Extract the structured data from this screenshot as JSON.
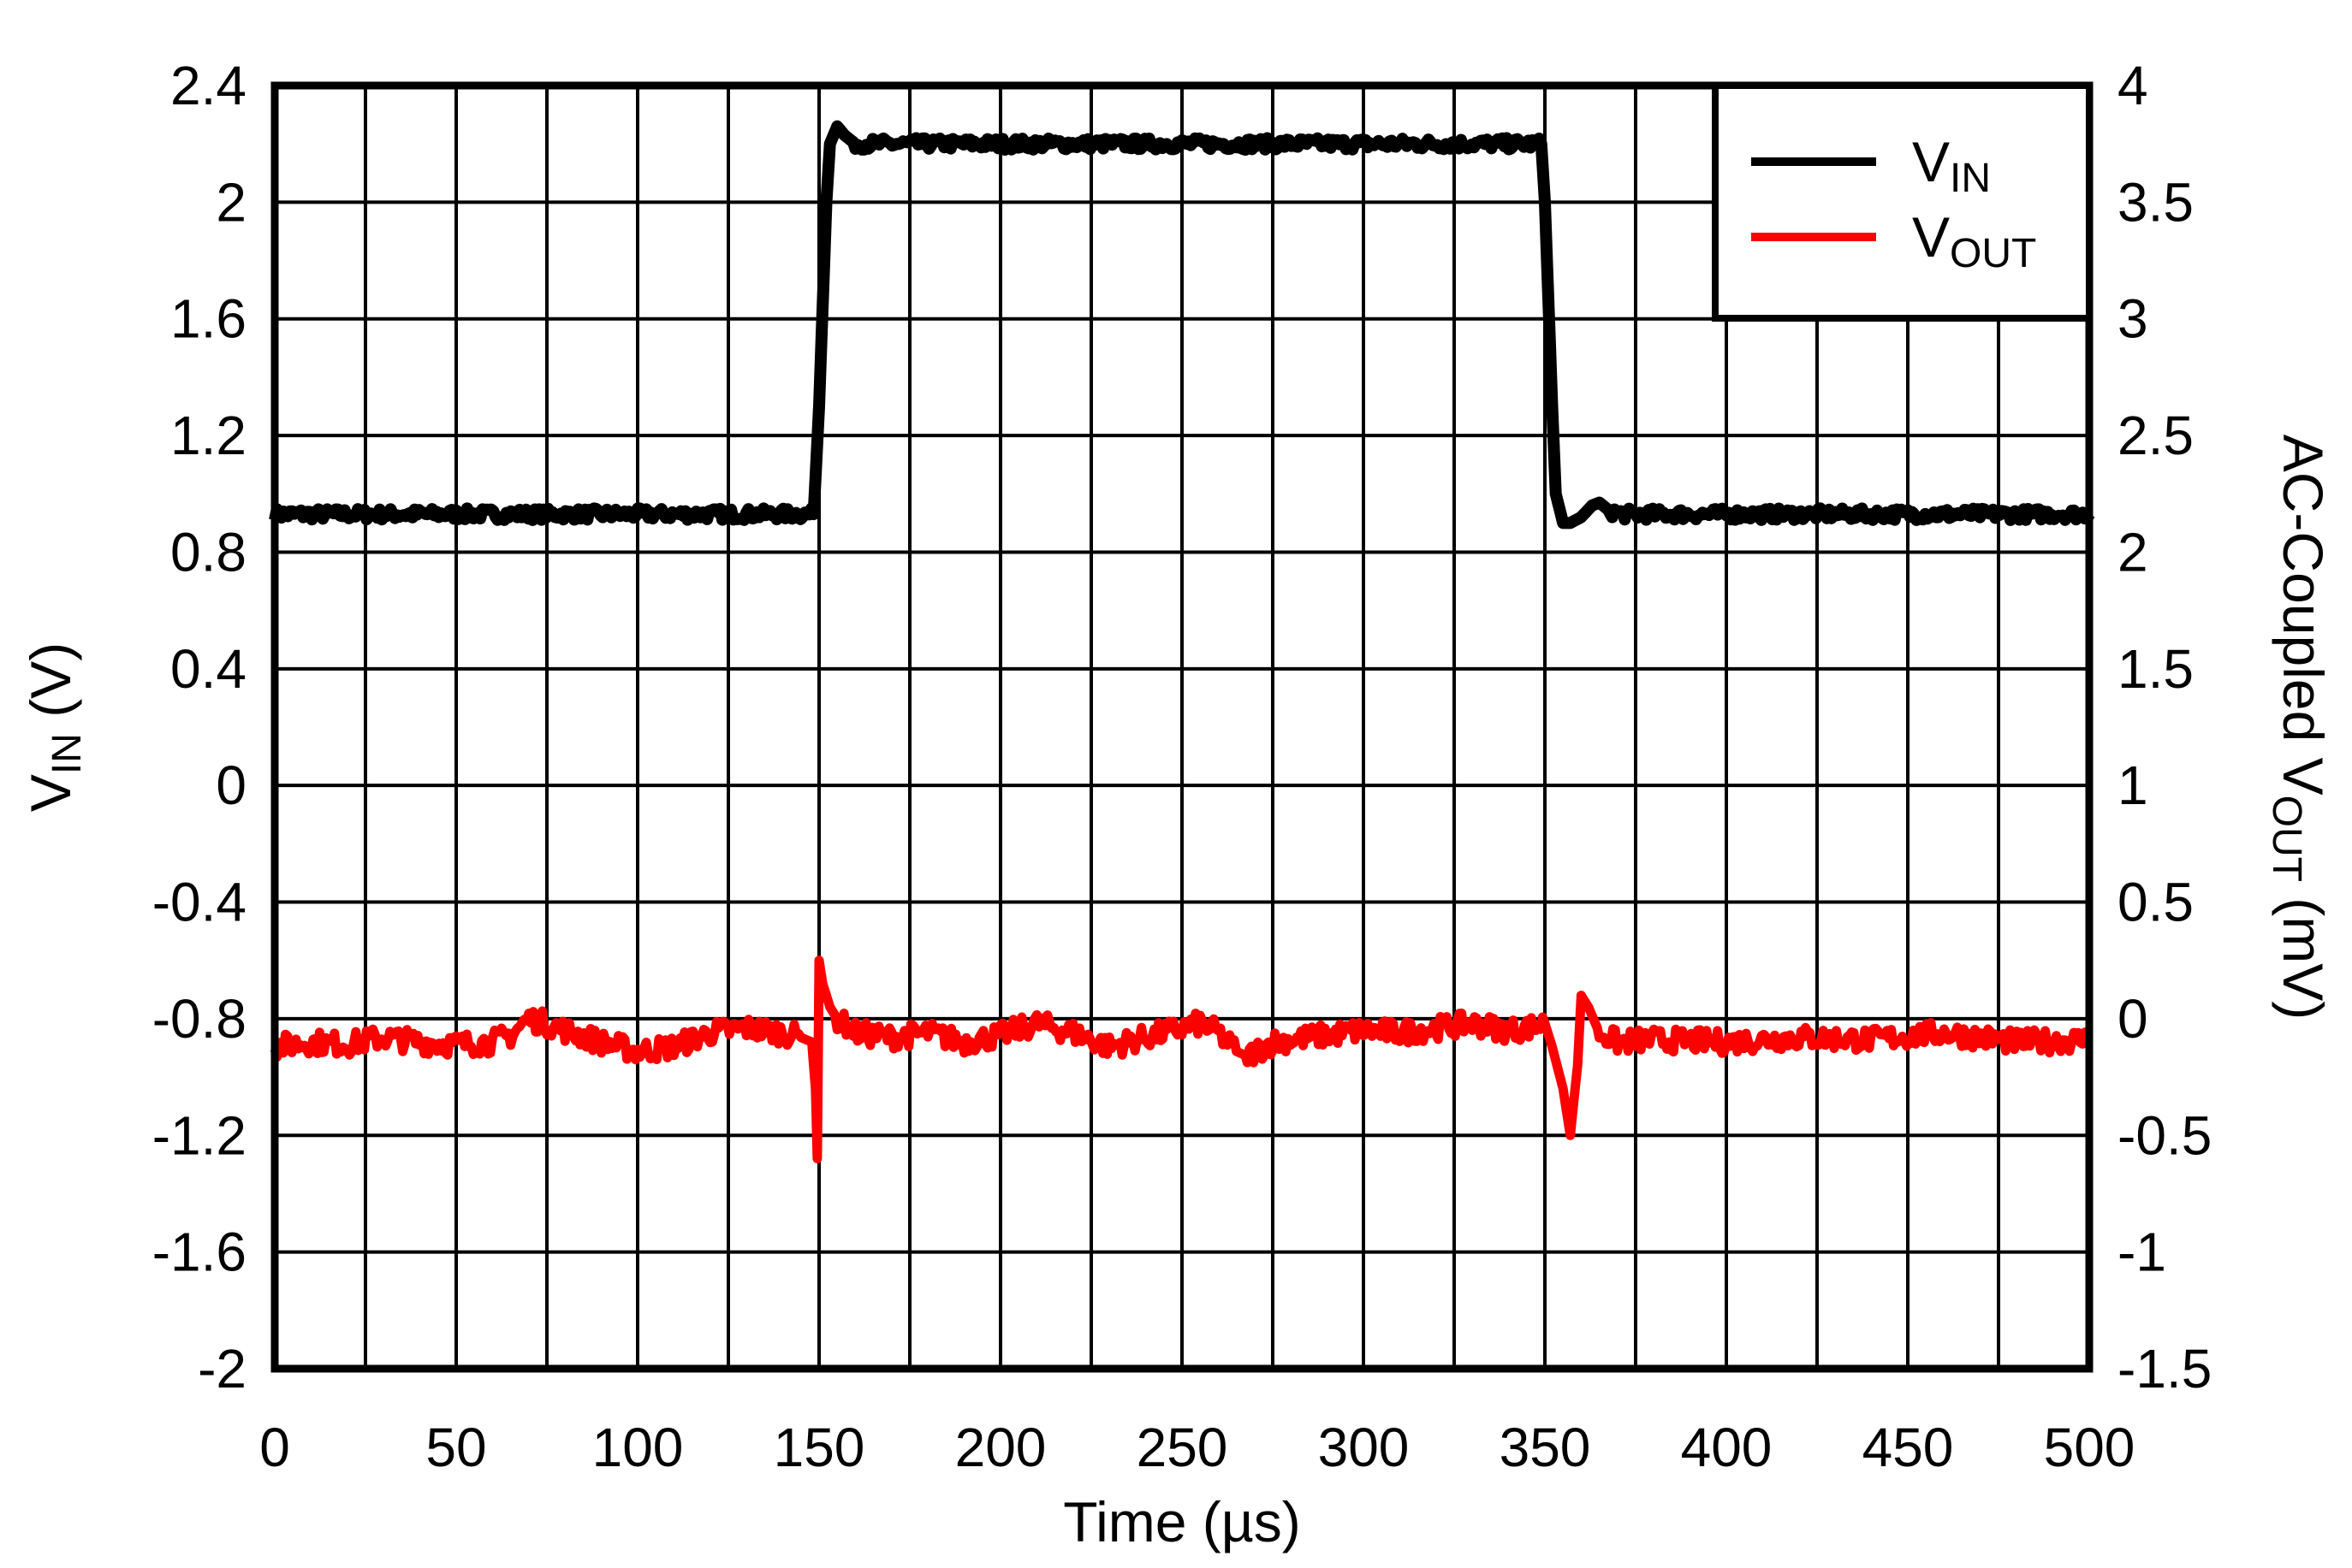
{
  "chart_data": {
    "type": "line",
    "xlabel": "Time (µs)",
    "ylabel_left": {
      "main": "V",
      "sub": "IN",
      "unit": " (V)"
    },
    "ylabel_right": {
      "prefix": "AC-Coupled V",
      "sub": "OUT",
      "unit": " (mV)"
    },
    "xlim": [
      0,
      500
    ],
    "ylim_left": [
      -2,
      2.4
    ],
    "ylim_right": [
      -1.5,
      4
    ],
    "x_ticks": [
      "0",
      "50",
      "100",
      "150",
      "200",
      "250",
      "300",
      "350",
      "400",
      "450",
      "500"
    ],
    "y_ticks_left": [
      "2.4",
      "2",
      "1.6",
      "1.2",
      "0.8",
      "0.4",
      "0",
      "-0.4",
      "-0.8",
      "-1.2",
      "-1.6",
      "-2"
    ],
    "y_ticks_right": [
      "4",
      "3.5",
      "3",
      "2.5",
      "2",
      "1.5",
      "1",
      "0.5",
      "0",
      "-0.5",
      "-1",
      "-1.5"
    ],
    "grid": true,
    "legend_placement": "top-right",
    "series": [
      {
        "name": "VIN",
        "legend_main": "V",
        "legend_sub": "IN",
        "axis": "left",
        "color": "#000000",
        "x": [
          0,
          50,
          100,
          148.5,
          150,
          152,
          153,
          155,
          157,
          160,
          200,
          250,
          300,
          349,
          350,
          352,
          353,
          355,
          357,
          360,
          363,
          365,
          368,
          372,
          400,
          450,
          500
        ],
        "y": [
          0.93,
          0.93,
          0.93,
          0.93,
          1.3,
          2.0,
          2.2,
          2.26,
          2.23,
          2.2,
          2.2,
          2.2,
          2.2,
          2.2,
          2.0,
          1.3,
          1.0,
          0.9,
          0.9,
          0.92,
          0.96,
          0.97,
          0.94,
          0.93,
          0.93,
          0.93,
          0.93
        ]
      },
      {
        "name": "VOUT",
        "legend_main": "V",
        "legend_sub": "OUT",
        "axis": "right",
        "color": "#ff0000",
        "x": [
          0,
          10,
          20,
          30,
          40,
          50,
          60,
          65,
          70,
          75,
          80,
          90,
          100,
          110,
          120,
          130,
          140,
          145,
          148,
          149,
          149.5,
          150,
          151,
          153,
          155,
          160,
          170,
          180,
          190,
          200,
          210,
          220,
          230,
          240,
          250,
          255,
          260,
          265,
          268,
          275,
          290,
          300,
          310,
          320,
          330,
          340,
          345,
          350,
          352,
          355,
          357,
          359,
          360,
          362,
          365,
          370,
          380,
          400,
          420,
          440,
          460,
          480,
          500
        ],
        "y": [
          -0.12,
          -0.1,
          -0.11,
          -0.08,
          -0.1,
          -0.11,
          -0.1,
          -0.07,
          0.0,
          -0.02,
          -0.05,
          -0.1,
          -0.14,
          -0.12,
          -0.06,
          -0.04,
          -0.06,
          -0.08,
          -0.1,
          -0.3,
          -0.6,
          0.25,
          0.15,
          0.05,
          0.0,
          -0.06,
          -0.08,
          -0.06,
          -0.1,
          -0.07,
          -0.02,
          -0.06,
          -0.12,
          -0.08,
          -0.04,
          -0.02,
          -0.06,
          -0.14,
          -0.16,
          -0.1,
          -0.07,
          -0.05,
          -0.06,
          -0.04,
          -0.02,
          -0.05,
          -0.04,
          -0.02,
          -0.12,
          -0.3,
          -0.5,
          -0.2,
          0.1,
          0.05,
          -0.06,
          -0.1,
          -0.09,
          -0.1,
          -0.08,
          -0.09,
          -0.06,
          -0.1,
          -0.09
        ]
      }
    ]
  }
}
